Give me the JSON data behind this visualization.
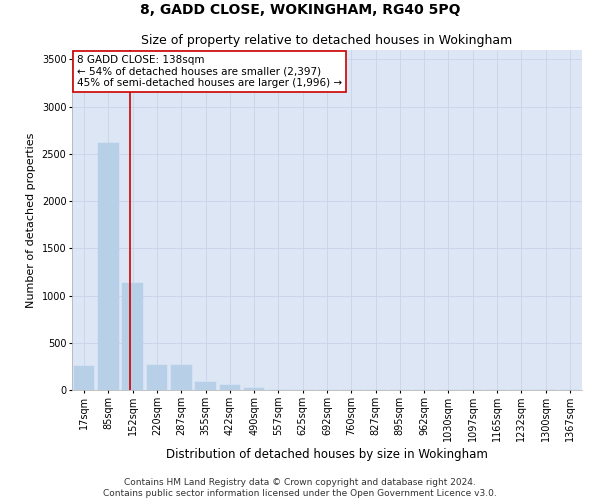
{
  "title": "8, GADD CLOSE, WOKINGHAM, RG40 5PQ",
  "subtitle": "Size of property relative to detached houses in Wokingham",
  "xlabel": "Distribution of detached houses by size in Wokingham",
  "ylabel": "Number of detached properties",
  "categories": [
    "17sqm",
    "85sqm",
    "152sqm",
    "220sqm",
    "287sqm",
    "355sqm",
    "422sqm",
    "490sqm",
    "557sqm",
    "625sqm",
    "692sqm",
    "760sqm",
    "827sqm",
    "895sqm",
    "962sqm",
    "1030sqm",
    "1097sqm",
    "1165sqm",
    "1232sqm",
    "1300sqm",
    "1367sqm"
  ],
  "bar_values": [
    250,
    2620,
    1130,
    270,
    270,
    90,
    55,
    25,
    0,
    0,
    0,
    0,
    0,
    0,
    0,
    0,
    0,
    0,
    0,
    0,
    0
  ],
  "bar_color": "#b8cfe8",
  "bar_edgecolor": "#b8cfe8",
  "vline_color": "#cc0000",
  "vline_pos": 1.87,
  "annotation_text": "8 GADD CLOSE: 138sqm\n← 54% of detached houses are smaller (2,397)\n45% of semi-detached houses are larger (1,996) →",
  "annotation_box_facecolor": "#ffffff",
  "annotation_box_edgecolor": "#cc0000",
  "ylim": [
    0,
    3600
  ],
  "yticks": [
    0,
    500,
    1000,
    1500,
    2000,
    2500,
    3000,
    3500
  ],
  "grid_color": "#c8d4e8",
  "bg_color": "#dce6f5",
  "footer": "Contains HM Land Registry data © Crown copyright and database right 2024.\nContains public sector information licensed under the Open Government Licence v3.0.",
  "title_fontsize": 10,
  "subtitle_fontsize": 9,
  "xlabel_fontsize": 8.5,
  "ylabel_fontsize": 8,
  "tick_fontsize": 7,
  "footer_fontsize": 6.5,
  "annot_fontsize": 7.5
}
